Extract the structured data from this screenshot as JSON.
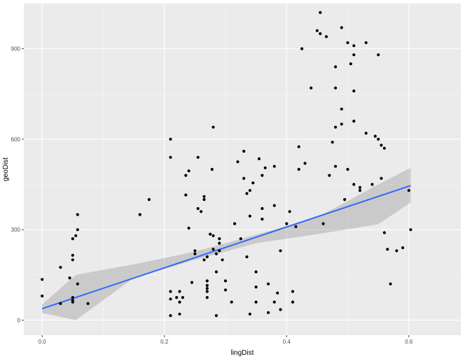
{
  "chart_data": {
    "type": "scatter",
    "title": "",
    "xlabel": "lingDist",
    "ylabel": "geoDist",
    "xlim": [
      -0.03,
      0.685
    ],
    "ylim": [
      -50,
      1050
    ],
    "x_ticks": [
      0.0,
      0.2,
      0.4,
      0.6
    ],
    "x_tick_labels": [
      "0.0",
      "0.2",
      "0.4",
      "0.6"
    ],
    "y_ticks": [
      0,
      300,
      600,
      900
    ],
    "y_tick_labels": [
      "0",
      "300",
      "600",
      "900"
    ],
    "grid": true,
    "background": "#ebebeb",
    "point_color": "#000000",
    "fit_line_color": "#3366ff",
    "ribbon_color": "#999999",
    "fit": {
      "method": "linear",
      "x_range": [
        0.0,
        0.603
      ],
      "intercept": 38,
      "slope": 677
    },
    "confidence_band": {
      "x": [
        0.0,
        0.055,
        0.15,
        0.25,
        0.35,
        0.45,
        0.55,
        0.603
      ],
      "lower": [
        24,
        0,
        140,
        200,
        255,
        285,
        318,
        390
      ],
      "upper": [
        52,
        150,
        185,
        227,
        283,
        340,
        450,
        505
      ]
    },
    "points": [
      [
        0.0,
        135
      ],
      [
        0.0,
        80
      ],
      [
        0.03,
        175
      ],
      [
        0.03,
        55
      ],
      [
        0.045,
        140
      ],
      [
        0.05,
        270
      ],
      [
        0.05,
        215
      ],
      [
        0.05,
        200
      ],
      [
        0.05,
        75
      ],
      [
        0.05,
        65
      ],
      [
        0.05,
        60
      ],
      [
        0.055,
        280
      ],
      [
        0.058,
        350
      ],
      [
        0.058,
        300
      ],
      [
        0.058,
        120
      ],
      [
        0.075,
        55
      ],
      [
        0.16,
        350
      ],
      [
        0.175,
        400
      ],
      [
        0.21,
        600
      ],
      [
        0.21,
        540
      ],
      [
        0.21,
        95
      ],
      [
        0.21,
        70
      ],
      [
        0.21,
        15
      ],
      [
        0.22,
        75
      ],
      [
        0.225,
        95
      ],
      [
        0.225,
        60
      ],
      [
        0.225,
        20
      ],
      [
        0.23,
        75
      ],
      [
        0.235,
        415
      ],
      [
        0.235,
        480
      ],
      [
        0.24,
        495
      ],
      [
        0.24,
        305
      ],
      [
        0.245,
        125
      ],
      [
        0.25,
        230
      ],
      [
        0.25,
        220
      ],
      [
        0.255,
        540
      ],
      [
        0.255,
        370
      ],
      [
        0.26,
        360
      ],
      [
        0.265,
        410
      ],
      [
        0.265,
        400
      ],
      [
        0.265,
        200
      ],
      [
        0.27,
        210
      ],
      [
        0.27,
        130
      ],
      [
        0.27,
        115
      ],
      [
        0.27,
        105
      ],
      [
        0.27,
        95
      ],
      [
        0.27,
        75
      ],
      [
        0.275,
        285
      ],
      [
        0.278,
        500
      ],
      [
        0.28,
        640
      ],
      [
        0.28,
        280
      ],
      [
        0.28,
        235
      ],
      [
        0.285,
        220
      ],
      [
        0.285,
        160
      ],
      [
        0.285,
        15
      ],
      [
        0.29,
        230
      ],
      [
        0.29,
        270
      ],
      [
        0.29,
        255
      ],
      [
        0.295,
        200
      ],
      [
        0.3,
        130
      ],
      [
        0.3,
        100
      ],
      [
        0.31,
        60
      ],
      [
        0.315,
        320
      ],
      [
        0.32,
        525
      ],
      [
        0.325,
        270
      ],
      [
        0.33,
        560
      ],
      [
        0.33,
        470
      ],
      [
        0.335,
        420
      ],
      [
        0.335,
        210
      ],
      [
        0.34,
        430
      ],
      [
        0.34,
        345
      ],
      [
        0.34,
        20
      ],
      [
        0.345,
        455
      ],
      [
        0.35,
        160
      ],
      [
        0.35,
        110
      ],
      [
        0.35,
        60
      ],
      [
        0.355,
        535
      ],
      [
        0.36,
        480
      ],
      [
        0.36,
        370
      ],
      [
        0.36,
        335
      ],
      [
        0.365,
        505
      ],
      [
        0.37,
        120
      ],
      [
        0.37,
        25
      ],
      [
        0.38,
        510
      ],
      [
        0.38,
        380
      ],
      [
        0.38,
        60
      ],
      [
        0.385,
        90
      ],
      [
        0.39,
        230
      ],
      [
        0.39,
        35
      ],
      [
        0.4,
        320
      ],
      [
        0.405,
        360
      ],
      [
        0.41,
        95
      ],
      [
        0.41,
        60
      ],
      [
        0.415,
        310
      ],
      [
        0.42,
        575
      ],
      [
        0.42,
        500
      ],
      [
        0.425,
        900
      ],
      [
        0.43,
        520
      ],
      [
        0.44,
        770
      ],
      [
        0.45,
        960
      ],
      [
        0.455,
        1020
      ],
      [
        0.455,
        950
      ],
      [
        0.46,
        320
      ],
      [
        0.465,
        940
      ],
      [
        0.47,
        480
      ],
      [
        0.475,
        590
      ],
      [
        0.48,
        840
      ],
      [
        0.48,
        770
      ],
      [
        0.48,
        640
      ],
      [
        0.48,
        510
      ],
      [
        0.49,
        970
      ],
      [
        0.49,
        700
      ],
      [
        0.49,
        650
      ],
      [
        0.495,
        400
      ],
      [
        0.5,
        920
      ],
      [
        0.5,
        500
      ],
      [
        0.505,
        850
      ],
      [
        0.51,
        910
      ],
      [
        0.51,
        880
      ],
      [
        0.51,
        760
      ],
      [
        0.51,
        660
      ],
      [
        0.51,
        450
      ],
      [
        0.52,
        440
      ],
      [
        0.52,
        430
      ],
      [
        0.53,
        920
      ],
      [
        0.53,
        620
      ],
      [
        0.54,
        450
      ],
      [
        0.545,
        610
      ],
      [
        0.55,
        880
      ],
      [
        0.55,
        600
      ],
      [
        0.555,
        580
      ],
      [
        0.555,
        470
      ],
      [
        0.56,
        570
      ],
      [
        0.56,
        290
      ],
      [
        0.565,
        235
      ],
      [
        0.57,
        120
      ],
      [
        0.58,
        230
      ],
      [
        0.59,
        240
      ],
      [
        0.6,
        430
      ],
      [
        0.603,
        300
      ]
    ]
  }
}
